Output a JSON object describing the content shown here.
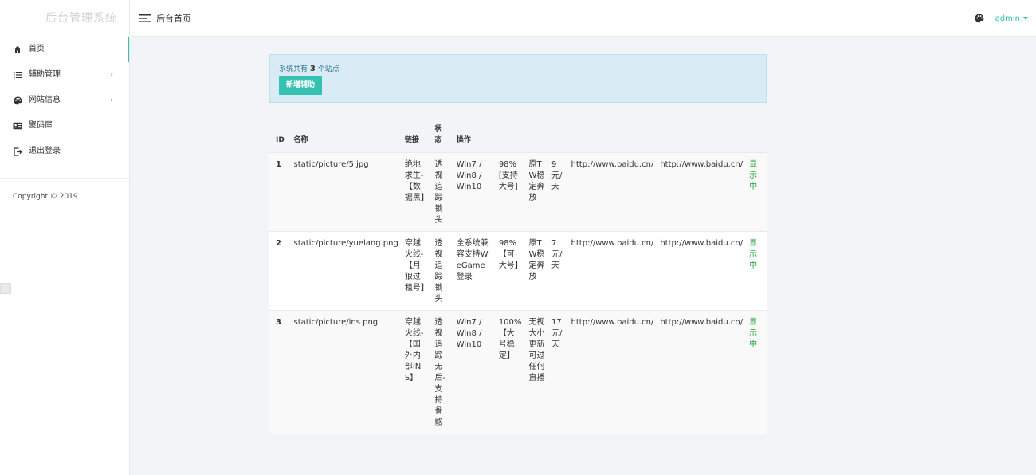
{
  "app": {
    "title": "后台管理系统"
  },
  "sidebar": {
    "items": [
      {
        "label": "首页",
        "icon": "home-icon",
        "active": true,
        "has_arrow": false
      },
      {
        "label": "辅助管理",
        "icon": "list-icon",
        "active": false,
        "has_arrow": true
      },
      {
        "label": "网站信息",
        "icon": "palette-icon",
        "active": false,
        "has_arrow": true
      },
      {
        "label": "聚码屋",
        "icon": "id-card-icon",
        "active": false,
        "has_arrow": false
      },
      {
        "label": "退出登录",
        "icon": "logout-icon",
        "active": false,
        "has_arrow": false
      }
    ],
    "arrow": "›",
    "copyright": "Copyright © 2019"
  },
  "header": {
    "breadcrumb": "后台首页",
    "user": "admin"
  },
  "info": {
    "prefix": "系统共有",
    "count": "3",
    "suffix": "个站点",
    "add_button": "新增辅助"
  },
  "table": {
    "headers": [
      "ID",
      "名称",
      "链接",
      "状态",
      "操作"
    ],
    "rows": [
      {
        "id": "1",
        "name": "static/picture/5.jpg",
        "link": "绝地求生-【数据黑】",
        "status": "透视追踪锁头",
        "os": "Win7 / Win8 / Win10",
        "rate": "98%[支持大号]",
        "note": "原TW稳定奔放",
        "price": "9元/天",
        "url1": "http://www.baidu.cn/",
        "url2": "http://www.baidu.cn/",
        "display": "显示中"
      },
      {
        "id": "2",
        "name": "static/picture/yuelang.png",
        "link": "穿越火线-【月狼过租号】",
        "status": "透视追踪锁头",
        "os": "全系统兼容支持WeGame登录",
        "rate": "98%【可大号】",
        "note": "原TW稳定奔放",
        "price": "7元/天",
        "url1": "http://www.baidu.cn/",
        "url2": "http://www.baidu.cn/",
        "display": "显示中"
      },
      {
        "id": "3",
        "name": "static/picture/ins.png",
        "link": "穿越火线-【国外内部INS】",
        "status": "透视追踪无后-支持骨骼",
        "os": "Win7 / Win8 / Win10",
        "rate": "100%【大号稳定】",
        "note": "无视大小更新可过任何直播",
        "price": "17元/天",
        "url1": "http://www.baidu.cn/",
        "url2": "http://www.baidu.cn/",
        "display": "显示中"
      }
    ]
  },
  "colors": {
    "accent": "#36c1b3",
    "status_green": "#22a33a",
    "info_bg": "#d9ecf5"
  }
}
